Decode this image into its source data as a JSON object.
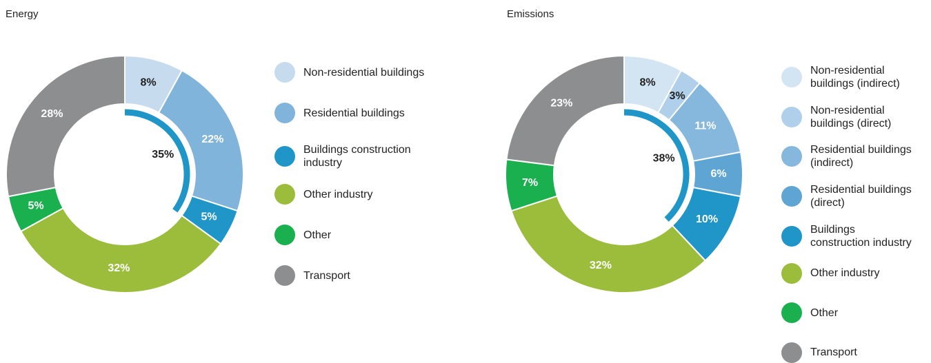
{
  "chart_data": [
    {
      "type": "donut",
      "title": "Energy",
      "categories": [
        "Non-residential buildings",
        "Residential buildings",
        "Buildings construction industry",
        "Other industry",
        "Other",
        "Transport"
      ],
      "values": [
        8,
        22,
        5,
        32,
        5,
        28
      ],
      "value_labels": [
        "8%",
        "22%",
        "5%",
        "32%",
        "5%",
        "28%"
      ],
      "colors": [
        "#c6dcee",
        "#80b4da",
        "#1f96c7",
        "#9cbd3b",
        "#1bb04f",
        "#8d8e90"
      ],
      "highlight": {
        "value": 35,
        "label": "35%",
        "color": "#1f96c7"
      }
    },
    {
      "type": "donut",
      "title": "Emissions",
      "categories": [
        "Non-residential buildings (indirect)",
        "Non-residential buildings (direct)",
        "Residential buildings (indirect)",
        "Residential buildings (direct)",
        "Buildings construction industry",
        "Other industry",
        "Other",
        "Transport"
      ],
      "values": [
        8,
        3,
        11,
        6,
        10,
        32,
        7,
        23
      ],
      "value_labels": [
        "8%",
        "3%",
        "11%",
        "6%",
        "10%",
        "32%",
        "7%",
        "23%"
      ],
      "colors": [
        "#d3e5f3",
        "#b0cfea",
        "#86b8dd",
        "#5ea5d3",
        "#1f96c7",
        "#9cbd3b",
        "#1bb04f",
        "#8d8e90"
      ],
      "highlight": {
        "value": 38,
        "label": "38%",
        "color": "#1f96c7"
      }
    }
  ]
}
